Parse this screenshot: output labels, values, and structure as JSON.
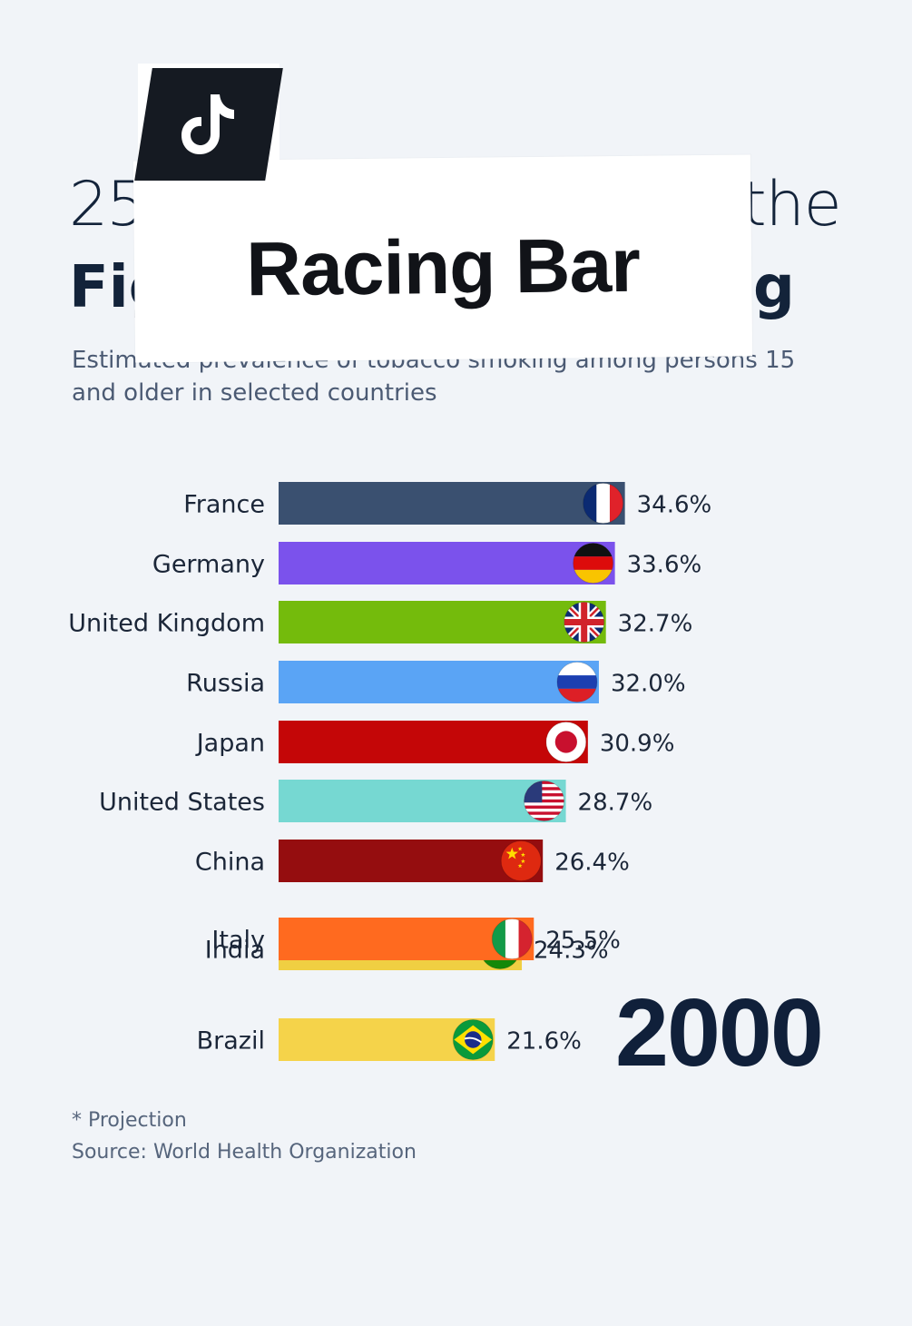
{
  "overlay": {
    "app_icon": "tiktok-icon",
    "label": "Racing Bar"
  },
  "title": {
    "line1_left": "25",
    "line1_right": "the",
    "line2_left": "Fig",
    "line2_right": "ıg"
  },
  "subtitle": {
    "line1": "Estimated prevalence of tobacco smoking among persons 15",
    "line2": "and older in selected countries"
  },
  "chart_data": {
    "type": "bar",
    "orientation": "horizontal",
    "frame_year": "2000",
    "categories": [
      "France",
      "Germany",
      "United Kingdom",
      "Russia",
      "Japan",
      "United States",
      "China",
      "India",
      "Italy",
      "Brazil"
    ],
    "values": [
      34.6,
      33.6,
      32.7,
      32.0,
      30.9,
      28.7,
      26.4,
      24.3,
      25.5,
      21.6
    ],
    "value_labels": [
      "34.6%",
      "33.6%",
      "32.7%",
      "32.0%",
      "30.9%",
      "28.7%",
      "26.4%",
      "24.3%",
      "25.5%",
      "21.6%"
    ],
    "colors": [
      "#3a5070",
      "#7b52ec",
      "#74bb0c",
      "#5aa4f5",
      "#c40607",
      "#76d8d2",
      "#950d0f",
      "#f0cf42",
      "#ff6a1f",
      "#f5d34a"
    ],
    "flags": [
      "flag-france-icon",
      "flag-germany-icon",
      "flag-uk-icon",
      "flag-russia-icon",
      "flag-japan-icon",
      "flag-usa-icon",
      "flag-china-icon",
      "flag-india-icon",
      "flag-italy-icon",
      "flag-brazil-icon"
    ],
    "grid": false,
    "legend": "none"
  },
  "year": "2000",
  "notes": {
    "projection": "* Projection",
    "source": "Source: World Health Organization"
  }
}
